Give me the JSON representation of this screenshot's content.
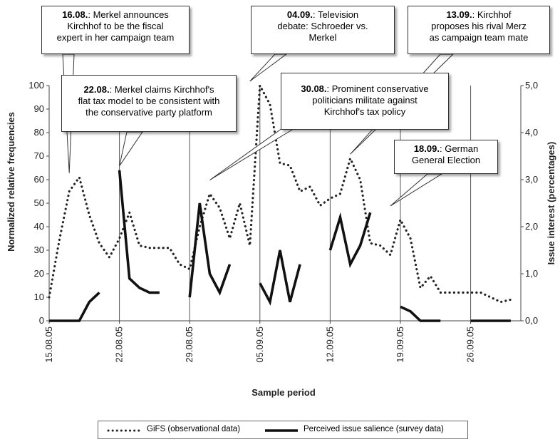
{
  "chart_data": {
    "type": "line",
    "title": "",
    "xlabel": "Sample period",
    "ylabel_left": "Normalized relative frequencies",
    "ylabel_right": "Issue interest (percentages)",
    "y_left_range": [
      0,
      100
    ],
    "y_right_range": [
      0,
      5
    ],
    "y_left_ticks": [
      "0",
      "10",
      "20",
      "30",
      "40",
      "50",
      "60",
      "70",
      "80",
      "90",
      "100"
    ],
    "y_right_ticks": [
      "0,0",
      "1,0",
      "2,0",
      "3,0",
      "4,0",
      "5,0"
    ],
    "x_ticks": [
      "15.08.05",
      "22.08.05",
      "29.08.05",
      "05.09.05",
      "12.09.05",
      "19.09.05",
      "26.09.05"
    ],
    "x_range": [
      "2005-08-15",
      "2005-10-01"
    ],
    "series": [
      {
        "name": "GiFS (observational data)",
        "axis": "left",
        "style": "dotted",
        "points": [
          [
            "2005-08-15",
            10
          ],
          [
            "2005-08-16",
            34
          ],
          [
            "2005-08-17",
            55
          ],
          [
            "2005-08-18",
            61
          ],
          [
            "2005-08-19",
            45
          ],
          [
            "2005-08-20",
            33
          ],
          [
            "2005-08-21",
            27
          ],
          [
            "2005-08-22",
            35
          ],
          [
            "2005-08-23",
            46
          ],
          [
            "2005-08-24",
            32
          ],
          [
            "2005-08-25",
            31
          ],
          [
            "2005-08-26",
            31
          ],
          [
            "2005-08-27",
            31
          ],
          [
            "2005-08-28",
            24
          ],
          [
            "2005-08-29",
            22
          ],
          [
            "2005-08-30",
            40
          ],
          [
            "2005-08-31",
            54
          ],
          [
            "2005-09-01",
            48
          ],
          [
            "2005-09-02",
            35
          ],
          [
            "2005-09-03",
            50
          ],
          [
            "2005-09-04",
            32
          ],
          [
            "2005-09-05",
            100
          ],
          [
            "2005-09-06",
            92
          ],
          [
            "2005-09-07",
            67
          ],
          [
            "2005-09-08",
            66
          ],
          [
            "2005-09-09",
            55
          ],
          [
            "2005-09-10",
            57
          ],
          [
            "2005-09-11",
            49
          ],
          [
            "2005-09-12",
            52
          ],
          [
            "2005-09-13",
            54
          ],
          [
            "2005-09-14",
            69
          ],
          [
            "2005-09-15",
            60
          ],
          [
            "2005-09-16",
            33
          ],
          [
            "2005-09-17",
            32
          ],
          [
            "2005-09-18",
            28
          ],
          [
            "2005-09-19",
            43
          ],
          [
            "2005-09-20",
            35
          ],
          [
            "2005-09-21",
            14
          ],
          [
            "2005-09-22",
            19
          ],
          [
            "2005-09-23",
            12
          ],
          [
            "2005-09-24",
            12
          ],
          [
            "2005-09-25",
            12
          ],
          [
            "2005-09-26",
            12
          ],
          [
            "2005-09-27",
            12
          ],
          [
            "2005-09-28",
            10
          ],
          [
            "2005-09-29",
            8
          ],
          [
            "2005-09-30",
            9
          ]
        ]
      },
      {
        "name": "Perceived issue salience (survey data)",
        "axis": "right",
        "style": "solid",
        "segments": [
          [
            [
              "2005-08-15",
              0.0
            ],
            [
              "2005-08-16",
              0.0
            ],
            [
              "2005-08-17",
              0.0
            ],
            [
              "2005-08-18",
              0.0
            ],
            [
              "2005-08-19",
              0.4
            ],
            [
              "2005-08-20",
              0.6
            ]
          ],
          [
            [
              "2005-08-22",
              3.2
            ],
            [
              "2005-08-23",
              0.9
            ],
            [
              "2005-08-24",
              0.7
            ],
            [
              "2005-08-25",
              0.6
            ],
            [
              "2005-08-26",
              0.6
            ]
          ],
          [
            [
              "2005-08-29",
              0.5
            ],
            [
              "2005-08-30",
              2.5
            ],
            [
              "2005-08-31",
              1.0
            ],
            [
              "2005-09-01",
              0.6
            ],
            [
              "2005-09-02",
              1.2
            ]
          ],
          [
            [
              "2005-09-05",
              0.8
            ],
            [
              "2005-09-06",
              0.4
            ],
            [
              "2005-09-07",
              1.5
            ],
            [
              "2005-09-08",
              0.4
            ],
            [
              "2005-09-09",
              1.2
            ]
          ],
          [
            [
              "2005-09-12",
              1.5
            ],
            [
              "2005-09-13",
              2.2
            ],
            [
              "2005-09-14",
              1.2
            ],
            [
              "2005-09-15",
              1.6
            ],
            [
              "2005-09-16",
              2.3
            ]
          ],
          [
            [
              "2005-09-19",
              0.3
            ],
            [
              "2005-09-20",
              0.2
            ],
            [
              "2005-09-21",
              0.0
            ],
            [
              "2005-09-22",
              0.0
            ],
            [
              "2005-09-23",
              0.0
            ]
          ],
          [
            [
              "2005-09-26",
              0.0
            ],
            [
              "2005-09-27",
              0.0
            ],
            [
              "2005-09-28",
              0.0
            ],
            [
              "2005-09-29",
              0.0
            ],
            [
              "2005-09-30",
              0.0
            ]
          ]
        ]
      }
    ],
    "vertical_lines": [
      "2005-08-22",
      "2005-08-29",
      "2005-09-05",
      "2005-09-12",
      "2005-09-19",
      "2005-09-26"
    ],
    "annotations": [
      {
        "date": "16.08.",
        "text": ": Merkel announces Kirchhof to be the fiscal expert in her campaign team",
        "anchor": [
          "2005-08-17",
          61
        ]
      },
      {
        "date": "22.08.",
        "text": ": Merkel claims Kirchhof's flat tax model to be consistent with the conservative party platform",
        "anchor": [
          "2005-08-22",
          64
        ]
      },
      {
        "date": "04.09.",
        "text": ": Television debate: Schroeder vs. Merkel",
        "anchor": [
          "2005-09-04",
          100
        ]
      },
      {
        "date": "30.08.",
        "text": ": Prominent conservative politicians militate against Kirchhof's tax policy",
        "anchor": [
          "2005-08-31",
          58
        ]
      },
      {
        "date": "13.09.",
        "text": ": Kirchhof proposes his rival Merz as campaign team mate",
        "anchor": [
          "2005-09-14",
          69
        ]
      },
      {
        "date": "18.09.",
        "text": ": German General Election",
        "anchor": [
          "2005-09-18",
          47
        ]
      }
    ],
    "legend_position": "bottom"
  },
  "callouts": [
    {
      "id": "c1",
      "date": "16.08.",
      "lines": [
        ": Merkel announces",
        "Kirchhof to be the fiscal",
        "expert in her campaign team"
      ]
    },
    {
      "id": "c2",
      "date": "22.08.",
      "lines": [
        ": Merkel claims Kirchhof's",
        "flat tax model to be consistent with",
        "the conservative party platform"
      ]
    },
    {
      "id": "c3",
      "date": "04.09.",
      "lines": [
        ": Television",
        "debate: Schroeder vs.",
        "Merkel"
      ]
    },
    {
      "id": "c4",
      "date": "30.08.",
      "lines": [
        ": Prominent conservative",
        "politicians militate against",
        "Kirchhof's tax policy"
      ]
    },
    {
      "id": "c5",
      "date": "13.09.",
      "lines": [
        ": Kirchhof",
        "proposes his rival Merz",
        "as campaign team mate"
      ]
    },
    {
      "id": "c6",
      "date": "18.09.",
      "lines": [
        ": German",
        "General Election"
      ]
    }
  ],
  "legend": {
    "gifs_label": "GiFS (observational data)",
    "survey_label": "Perceived issue salience (survey data)"
  }
}
